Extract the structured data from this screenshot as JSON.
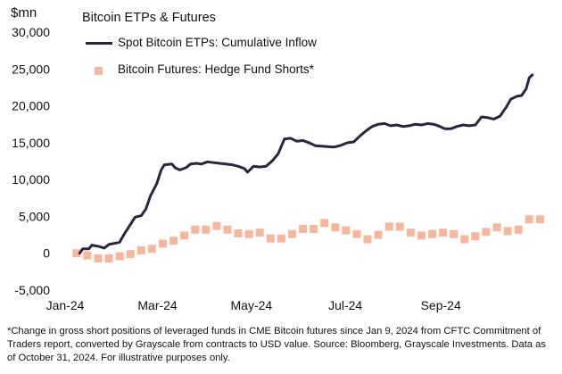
{
  "chart_data": {
    "type": "line",
    "title": "Bitcoin ETPs & Futures",
    "ylabel": "$mn",
    "ylim": [
      -5000,
      30000
    ],
    "yticks": [
      -5000,
      0,
      5000,
      10000,
      15000,
      20000,
      25000,
      30000
    ],
    "ytick_labels": [
      "-5,000",
      "0",
      "5,000",
      "10,000",
      "15,000",
      "20,000",
      "25,000",
      "30,000"
    ],
    "xlim": [
      "2024-01-01",
      "2024-11-10"
    ],
    "xticks": [
      "2024-01-01",
      "2024-03-01",
      "2024-05-01",
      "2024-07-01",
      "2024-09-01"
    ],
    "xtick_labels": [
      "Jan-24",
      "Mar-24",
      "May-24",
      "Jul-24",
      "Sep-24"
    ],
    "grid": false,
    "legend_position": "top",
    "series": [
      {
        "name": "Spot Bitcoin ETPs: Cumulative Inflow",
        "color": "#2a2540",
        "style": "line",
        "points": [
          [
            "2024-01-11",
            0
          ],
          [
            "2024-01-13",
            600
          ],
          [
            "2024-01-17",
            600
          ],
          [
            "2024-01-19",
            1100
          ],
          [
            "2024-01-24",
            900
          ],
          [
            "2024-01-27",
            700
          ],
          [
            "2024-01-30",
            1200
          ],
          [
            "2024-02-04",
            1400
          ],
          [
            "2024-02-06",
            1500
          ],
          [
            "2024-02-09",
            2600
          ],
          [
            "2024-02-13",
            3900
          ],
          [
            "2024-02-16",
            4900
          ],
          [
            "2024-02-20",
            5100
          ],
          [
            "2024-02-23",
            6000
          ],
          [
            "2024-02-26",
            7800
          ],
          [
            "2024-03-01",
            9400
          ],
          [
            "2024-03-04",
            11300
          ],
          [
            "2024-03-06",
            12000
          ],
          [
            "2024-03-11",
            12100
          ],
          [
            "2024-03-13",
            11600
          ],
          [
            "2024-03-16",
            11300
          ],
          [
            "2024-03-20",
            11600
          ],
          [
            "2024-03-23",
            12100
          ],
          [
            "2024-03-27",
            12200
          ],
          [
            "2024-03-30",
            12100
          ],
          [
            "2024-04-03",
            12400
          ],
          [
            "2024-04-07",
            12300
          ],
          [
            "2024-04-11",
            12200
          ],
          [
            "2024-04-15",
            12100
          ],
          [
            "2024-04-19",
            12000
          ],
          [
            "2024-04-23",
            11800
          ],
          [
            "2024-04-27",
            11500
          ],
          [
            "2024-04-29",
            11000
          ],
          [
            "2024-05-03",
            11800
          ],
          [
            "2024-05-07",
            11700
          ],
          [
            "2024-05-11",
            11800
          ],
          [
            "2024-05-15",
            12500
          ],
          [
            "2024-05-19",
            13500
          ],
          [
            "2024-05-23",
            15500
          ],
          [
            "2024-05-27",
            15600
          ],
          [
            "2024-05-31",
            15200
          ],
          [
            "2024-06-04",
            15300
          ],
          [
            "2024-06-08",
            15000
          ],
          [
            "2024-06-12",
            14600
          ],
          [
            "2024-06-18",
            14500
          ],
          [
            "2024-06-24",
            14400
          ],
          [
            "2024-06-28",
            14600
          ],
          [
            "2024-07-03",
            15000
          ],
          [
            "2024-07-07",
            15100
          ],
          [
            "2024-07-11",
            15900
          ],
          [
            "2024-07-15",
            16600
          ],
          [
            "2024-07-19",
            17200
          ],
          [
            "2024-07-23",
            17500
          ],
          [
            "2024-07-27",
            17600
          ],
          [
            "2024-07-31",
            17300
          ],
          [
            "2024-08-04",
            17400
          ],
          [
            "2024-08-08",
            17200
          ],
          [
            "2024-08-12",
            17300
          ],
          [
            "2024-08-16",
            17500
          ],
          [
            "2024-08-20",
            17400
          ],
          [
            "2024-08-24",
            17600
          ],
          [
            "2024-08-28",
            17500
          ],
          [
            "2024-09-01",
            17200
          ],
          [
            "2024-09-04",
            16900
          ],
          [
            "2024-09-08",
            16900
          ],
          [
            "2024-09-12",
            17200
          ],
          [
            "2024-09-16",
            17400
          ],
          [
            "2024-09-20",
            17300
          ],
          [
            "2024-09-24",
            17400
          ],
          [
            "2024-09-28",
            18500
          ],
          [
            "2024-10-02",
            18400
          ],
          [
            "2024-10-06",
            18200
          ],
          [
            "2024-10-10",
            18600
          ],
          [
            "2024-10-14",
            19800
          ],
          [
            "2024-10-17",
            20900
          ],
          [
            "2024-10-21",
            21300
          ],
          [
            "2024-10-24",
            21400
          ],
          [
            "2024-10-27",
            22300
          ],
          [
            "2024-10-29",
            23800
          ],
          [
            "2024-10-31",
            24200
          ]
        ]
      },
      {
        "name": "Bitcoin Futures: Hedge Fund Shorts*",
        "color": "#f7b79e",
        "style": "square-markers",
        "points": [
          [
            "2024-01-09",
            0
          ],
          [
            "2024-01-16",
            -300
          ],
          [
            "2024-01-23",
            -700
          ],
          [
            "2024-01-30",
            -700
          ],
          [
            "2024-02-06",
            -400
          ],
          [
            "2024-02-13",
            -100
          ],
          [
            "2024-02-20",
            400
          ],
          [
            "2024-02-27",
            600
          ],
          [
            "2024-03-05",
            1300
          ],
          [
            "2024-03-12",
            1700
          ],
          [
            "2024-03-19",
            2400
          ],
          [
            "2024-03-26",
            3200
          ],
          [
            "2024-04-02",
            3200
          ],
          [
            "2024-04-09",
            3700
          ],
          [
            "2024-04-16",
            3200
          ],
          [
            "2024-04-23",
            2700
          ],
          [
            "2024-04-30",
            2600
          ],
          [
            "2024-05-07",
            2800
          ],
          [
            "2024-05-14",
            2000
          ],
          [
            "2024-05-21",
            2000
          ],
          [
            "2024-05-28",
            2600
          ],
          [
            "2024-06-04",
            3300
          ],
          [
            "2024-06-11",
            3300
          ],
          [
            "2024-06-18",
            4100
          ],
          [
            "2024-06-25",
            3500
          ],
          [
            "2024-07-02",
            3100
          ],
          [
            "2024-07-09",
            2600
          ],
          [
            "2024-07-16",
            1900
          ],
          [
            "2024-07-23",
            2500
          ],
          [
            "2024-07-30",
            3600
          ],
          [
            "2024-08-06",
            3600
          ],
          [
            "2024-08-13",
            2800
          ],
          [
            "2024-08-20",
            2400
          ],
          [
            "2024-08-27",
            2600
          ],
          [
            "2024-09-03",
            2800
          ],
          [
            "2024-09-10",
            2600
          ],
          [
            "2024-09-17",
            1900
          ],
          [
            "2024-09-24",
            2300
          ],
          [
            "2024-10-01",
            2900
          ],
          [
            "2024-10-08",
            3500
          ],
          [
            "2024-10-15",
            3000
          ],
          [
            "2024-10-22",
            3200
          ],
          [
            "2024-10-29",
            4600
          ],
          [
            "2024-11-05",
            4600
          ]
        ]
      }
    ]
  },
  "footnote": "*Change in gross short positions of leveraged funds in CME Bitcoin futures since Jan 9, 2024 from CFTC Commitment of Traders report, converted by Grayscale from contracts to USD value. Source: Bloomberg, Grayscale Investments. Data as of October 31, 2024. For illustrative purposes only."
}
